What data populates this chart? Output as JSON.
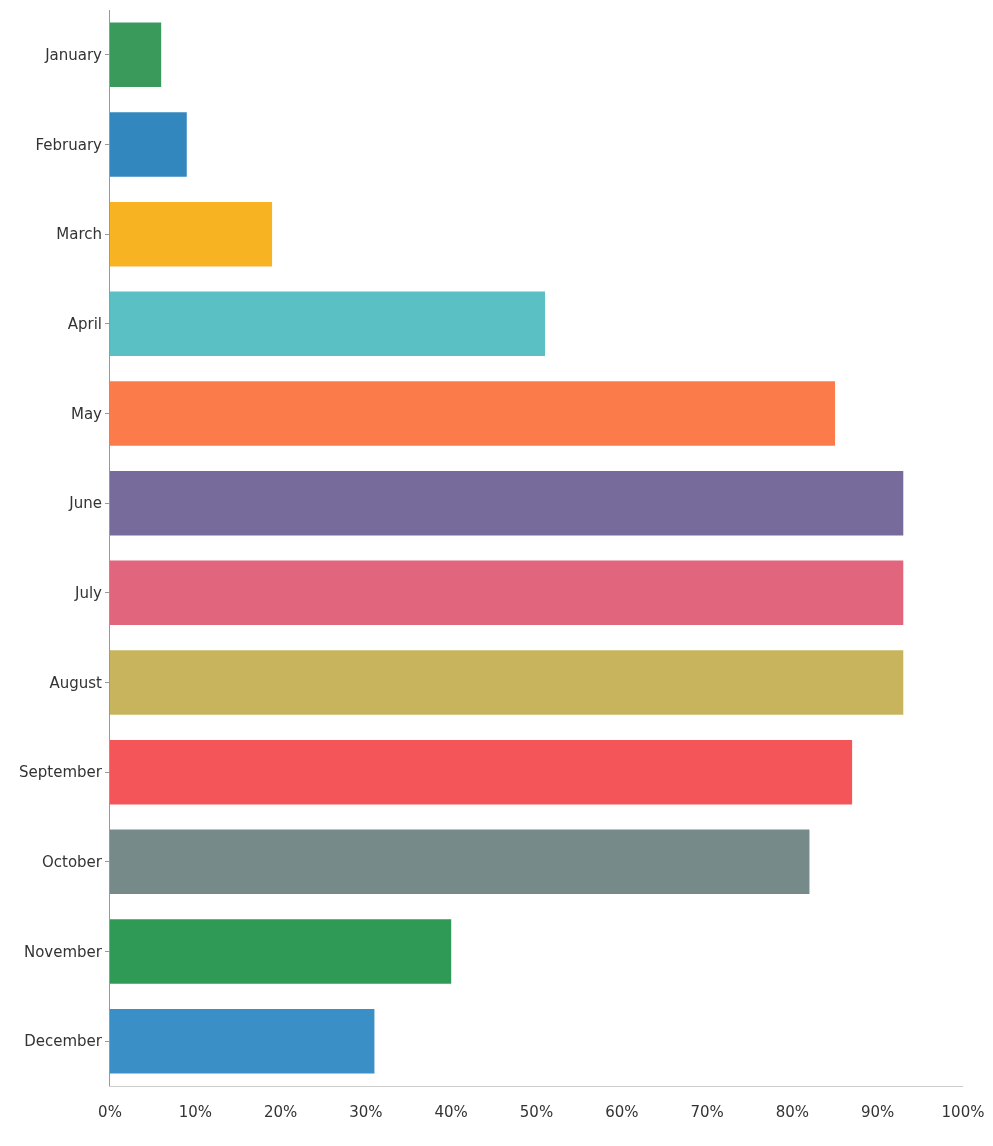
{
  "chart_data": {
    "type": "bar",
    "orientation": "horizontal",
    "categories": [
      "January",
      "February",
      "March",
      "April",
      "May",
      "June",
      "July",
      "August",
      "September",
      "October",
      "November",
      "December"
    ],
    "values": [
      6,
      9,
      19,
      51,
      85,
      93,
      93,
      93,
      87,
      82,
      40,
      31
    ],
    "colors": [
      "#3a9a5c",
      "#3387bf",
      "#f8b322",
      "#5bc0c4",
      "#fb7b4b",
      "#776b9b",
      "#e2657e",
      "#c7b45d",
      "#f35558",
      "#778a8a",
      "#2f9a55",
      "#3a8fc6"
    ],
    "xlim": [
      0,
      100
    ],
    "xticks": [
      {
        "value": 0,
        "label": "0%"
      },
      {
        "value": 10,
        "label": "10%"
      },
      {
        "value": 20,
        "label": "20%"
      },
      {
        "value": 30,
        "label": "30%"
      },
      {
        "value": 40,
        "label": "40%"
      },
      {
        "value": 50,
        "label": "50%"
      },
      {
        "value": 60,
        "label": "60%"
      },
      {
        "value": 70,
        "label": "70%"
      },
      {
        "value": 80,
        "label": "80%"
      },
      {
        "value": 90,
        "label": "90%"
      },
      {
        "value": 100,
        "label": "100%"
      }
    ]
  }
}
